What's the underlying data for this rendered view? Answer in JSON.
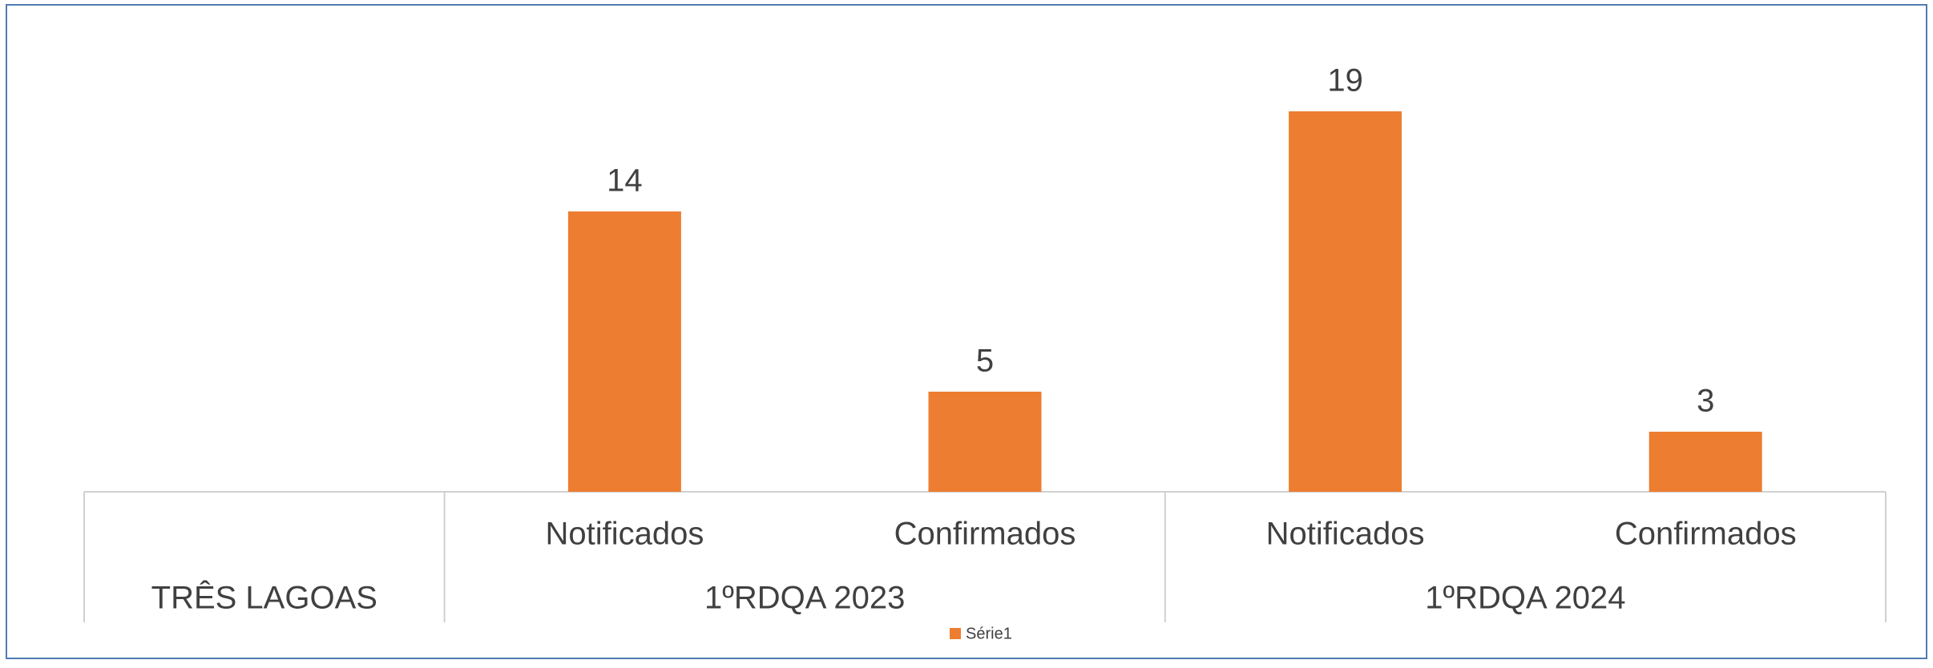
{
  "chart_data": {
    "type": "bar",
    "categories": [
      null,
      "Notificados",
      "Confirmados",
      "Notificados",
      "Confirmados"
    ],
    "groups": [
      {
        "name": "TRÊS LAGOAS",
        "size": 1
      },
      {
        "name": "1ºRDQA 2023",
        "size": 2
      },
      {
        "name": "1ºRDQA 2024",
        "size": 2
      }
    ],
    "series": [
      {
        "name": "Série1",
        "color": "#ed7d31",
        "values": [
          null,
          14,
          5,
          19,
          3
        ]
      }
    ],
    "ylim": [
      0,
      20
    ],
    "legend": "bottom"
  }
}
